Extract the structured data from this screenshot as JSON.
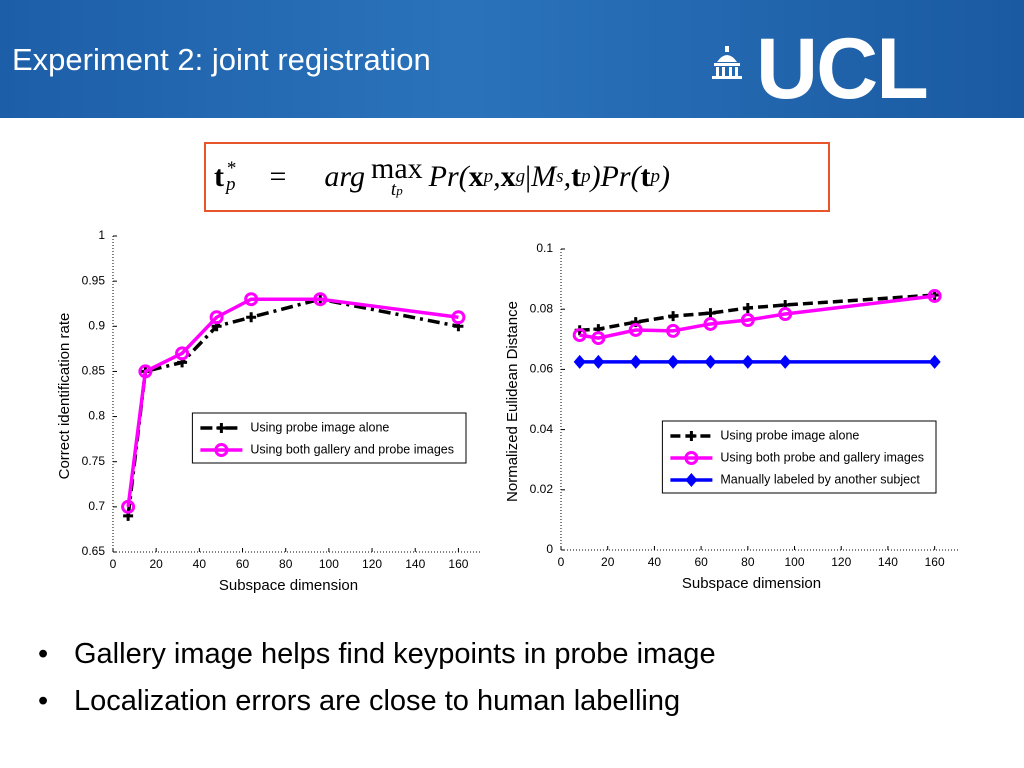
{
  "header": {
    "title": "Experiment 2: joint registration",
    "logo": "UCL"
  },
  "formula": [
    "t",
    "*",
    "p",
    "=",
    "arg",
    "max",
    "t",
    "p",
    "Pr(",
    "x",
    "p",
    ", ",
    "x",
    "g",
    "|",
    "M",
    "s",
    ", ",
    "t",
    "p",
    ")Pr(",
    "t",
    "p",
    ")"
  ],
  "chart_data": [
    {
      "type": "line",
      "x_label": "Subspace dimension",
      "y_label": "Correct identification rate",
      "x": [
        7,
        15,
        32,
        48,
        64,
        96,
        160
      ],
      "xlim": [
        0,
        170
      ],
      "xticks": [
        0,
        20,
        40,
        60,
        80,
        100,
        120,
        140,
        160
      ],
      "ylim": [
        0.65,
        1
      ],
      "yticks": [
        0.65,
        0.7,
        0.75,
        0.8,
        0.85,
        0.9,
        0.95,
        1
      ],
      "legend": "center right",
      "series": [
        {
          "name": "Using probe image alone",
          "color": "#000000",
          "linestyle": "dashdot",
          "marker": "plus",
          "values": [
            0.69,
            0.85,
            0.86,
            0.9,
            0.91,
            0.93,
            0.9
          ]
        },
        {
          "name": "Using both gallery and probe images",
          "color": "#ff00ff",
          "linestyle": "solid",
          "marker": "circle",
          "values": [
            0.7,
            0.85,
            0.87,
            0.91,
            0.93,
            0.93,
            0.91
          ]
        }
      ]
    },
    {
      "type": "line",
      "x_label": "Subspace dimension",
      "y_label": "Normalized Eulidean Distance",
      "x": [
        8,
        16,
        32,
        48,
        64,
        80,
        96,
        160
      ],
      "xlim": [
        0,
        170
      ],
      "xticks": [
        0,
        20,
        40,
        60,
        80,
        100,
        120,
        140,
        160
      ],
      "ylim": [
        0,
        0.1
      ],
      "yticks": [
        0,
        0.02,
        0.04,
        0.06,
        0.08,
        0.1
      ],
      "legend": "lower right",
      "series": [
        {
          "name": "Using probe image alone",
          "color": "#000000",
          "linestyle": "dashed",
          "marker": "plus",
          "values": [
            0.073,
            0.0734,
            0.0757,
            0.0777,
            0.0787,
            0.0804,
            0.0814,
            0.0847
          ]
        },
        {
          "name": "Using both probe and gallery images",
          "color": "#ff00ff",
          "linestyle": "solid",
          "marker": "circle",
          "values": [
            0.0714,
            0.0704,
            0.0731,
            0.0728,
            0.0751,
            0.0764,
            0.0784,
            0.0844
          ]
        },
        {
          "name": "Manually labeled by another subject",
          "color": "#0000ff",
          "linestyle": "solid",
          "marker": "diamond",
          "values": [
            0.0625,
            0.0625,
            0.0625,
            0.0625,
            0.0625,
            0.0625,
            0.0625,
            0.0625
          ]
        }
      ]
    }
  ],
  "bullets": [
    {
      "mark": "•",
      "text": "Gallery image helps find keypoints in probe image"
    },
    {
      "mark": "•",
      "text": "Localization errors are close to human labelling"
    }
  ]
}
